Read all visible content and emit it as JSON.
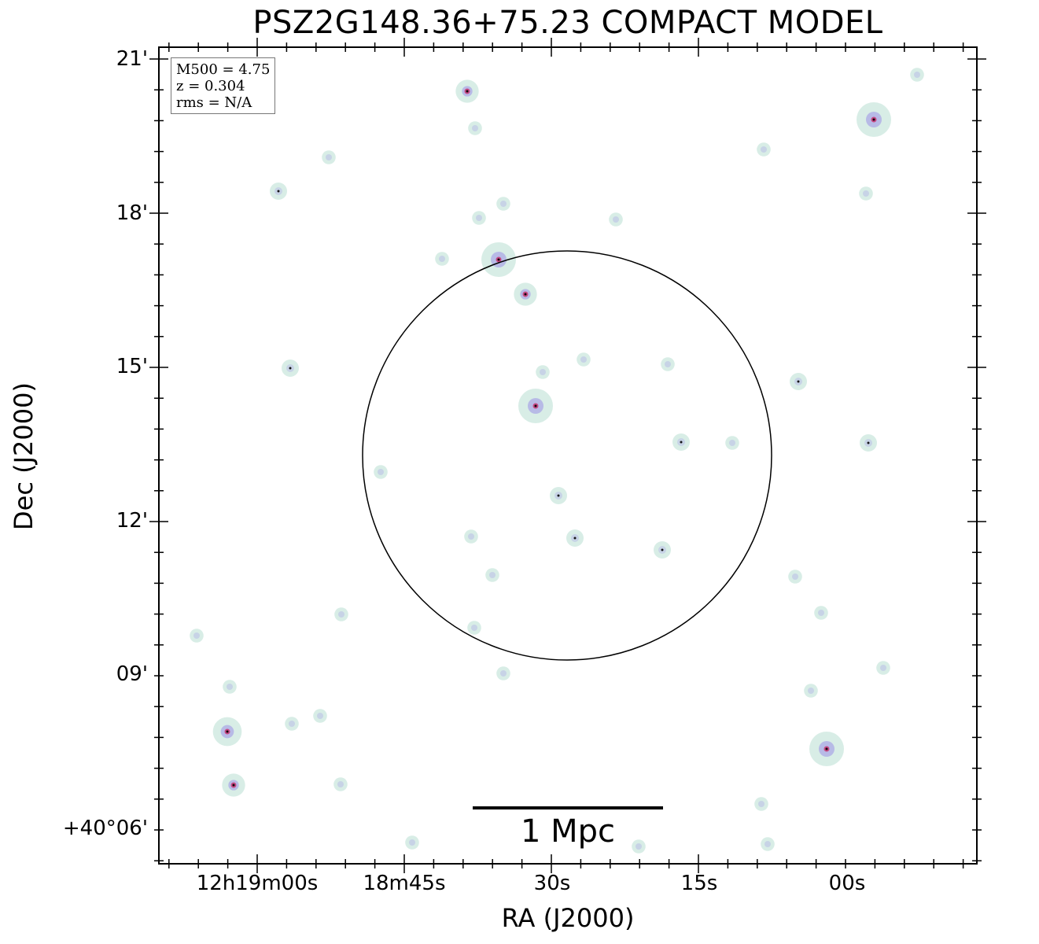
{
  "figure": {
    "title": "PSZ2G148.36+75.23 COMPACT MODEL",
    "xlabel": "RA (J2000)",
    "ylabel": "Dec (J2000)",
    "x_ticks": [
      "12h19m00s",
      "18m45s",
      "30s",
      "15s",
      "00s"
    ],
    "y_ticks": [
      "21'",
      "18'",
      "15'",
      "12'",
      "09'",
      "+40°06'"
    ],
    "info": {
      "m500": "M500 = 4.75",
      "z": "z = 0.304",
      "rms": "rms = N/A"
    },
    "scalebar_label": "1 Mpc",
    "colors": {
      "frame": "#000000",
      "source_halo": "#c8e6dc",
      "source_mid": "#b4b4e6",
      "source_core": "#c83c78",
      "source_peak": "#000000"
    }
  }
}
